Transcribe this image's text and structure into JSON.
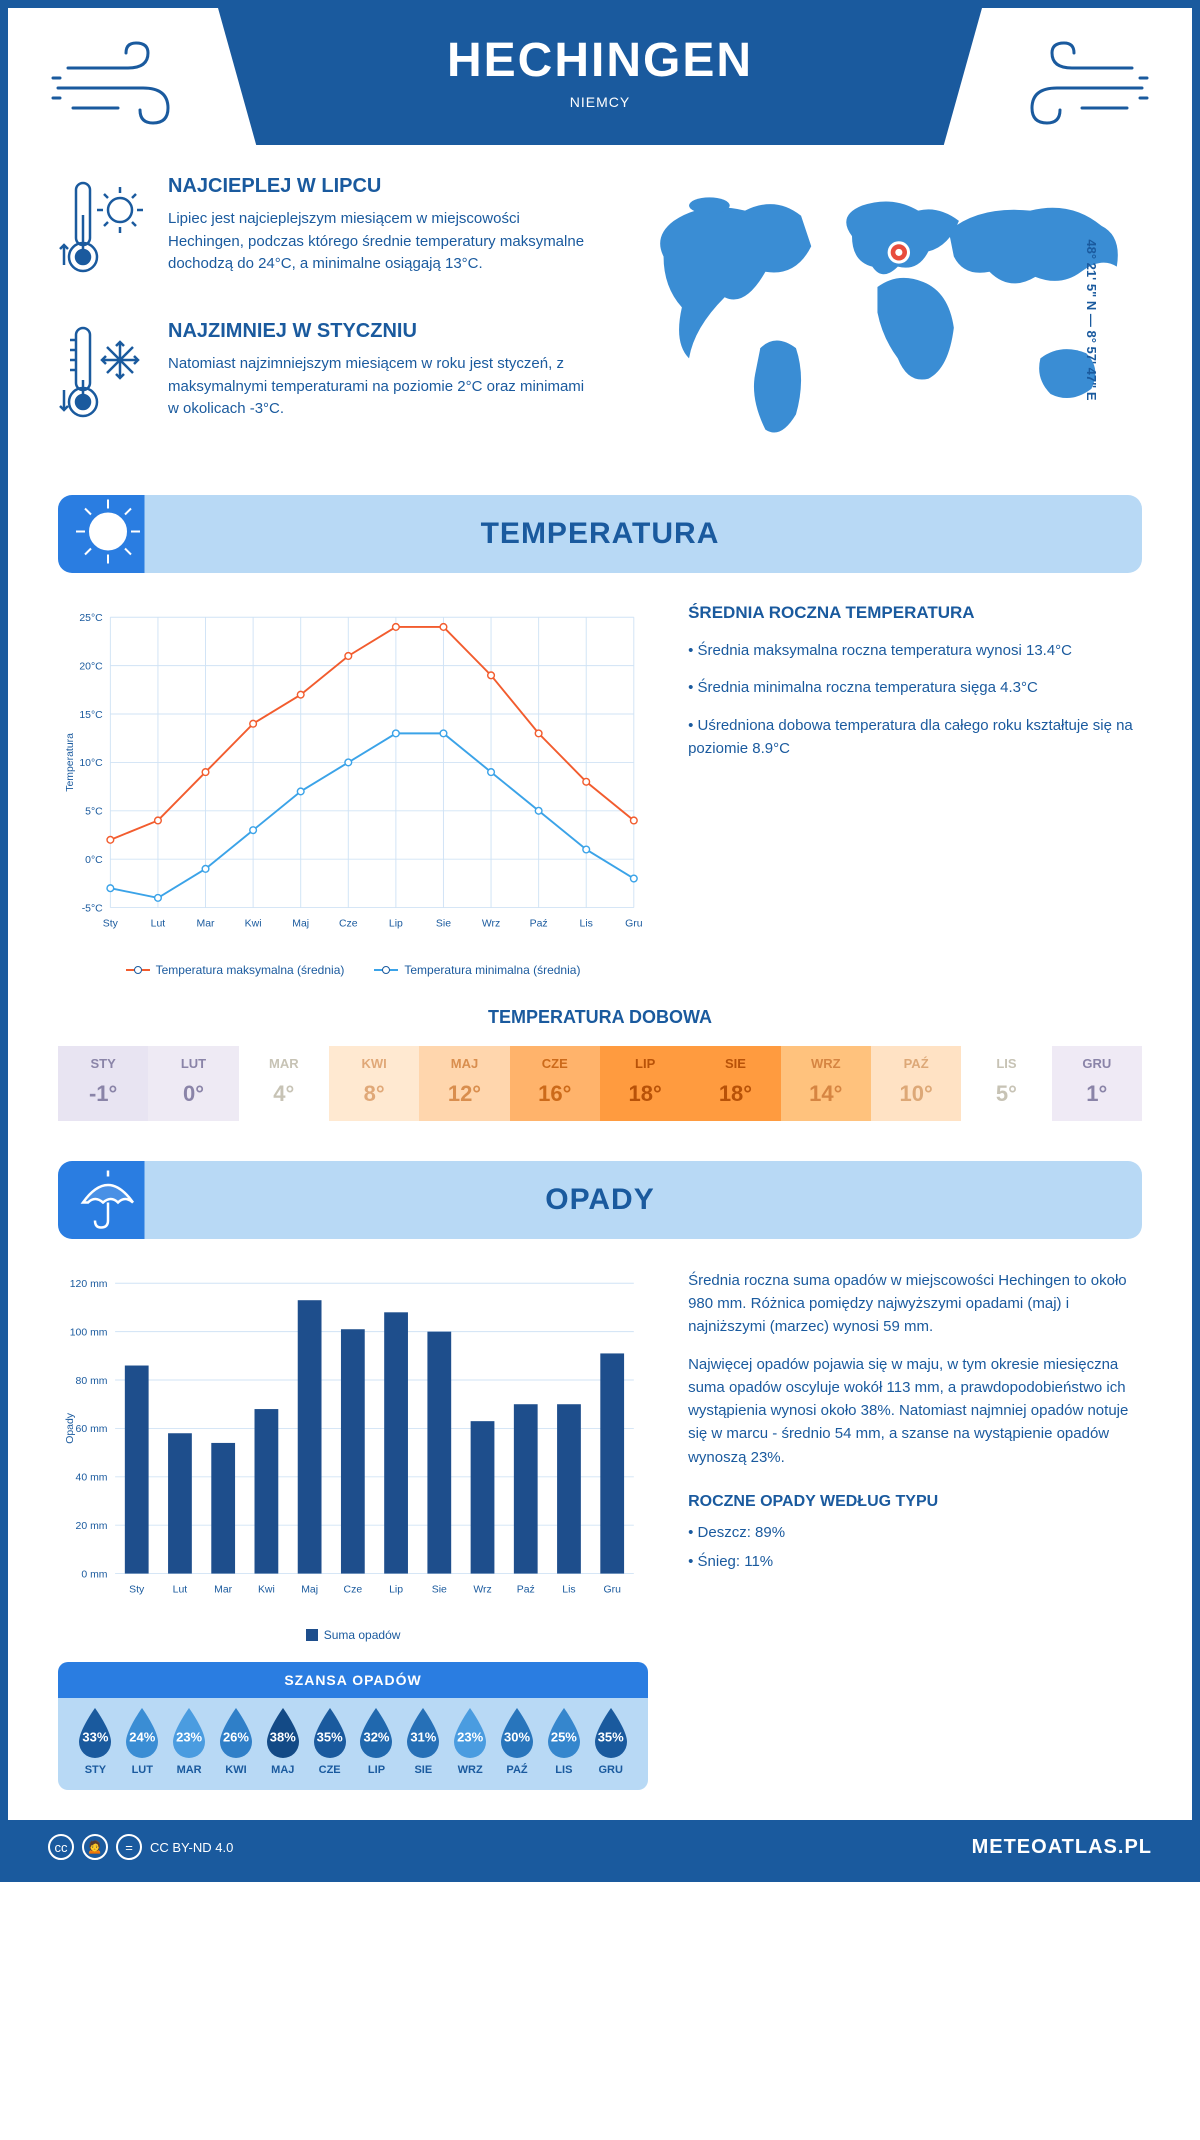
{
  "header": {
    "city": "HECHINGEN",
    "country": "NIEMCY"
  },
  "coords": "48° 21' 5\" N — 8° 57' 47\" E",
  "colors": {
    "primary": "#1a5a9e",
    "accent": "#2a7de1",
    "light": "#b8d9f5",
    "orange": "#f25c2e",
    "blue_line": "#3ba3e8",
    "bar": "#1e4e8c",
    "marker": "#e84c3d"
  },
  "facts": {
    "hot": {
      "title": "NAJCIEPLEJ W LIPCU",
      "text": "Lipiec jest najcieplejszym miesiącem w miejscowości Hechingen, podczas którego średnie temperatury maksymalne dochodzą do 24°C, a minimalne osiągają 13°C."
    },
    "cold": {
      "title": "NAJZIMNIEJ W STYCZNIU",
      "text": "Natomiast najzimniejszym miesiącem w roku jest styczeń, z maksymalnymi temperaturami na poziomie 2°C oraz minimami w okolicach -3°C."
    }
  },
  "temp_section": {
    "title": "TEMPERATURA",
    "chart": {
      "type": "line",
      "months": [
        "Sty",
        "Lut",
        "Mar",
        "Kwi",
        "Maj",
        "Cze",
        "Lip",
        "Sie",
        "Wrz",
        "Paź",
        "Lis",
        "Gru"
      ],
      "y_ticks": [
        -5,
        0,
        5,
        10,
        15,
        20,
        25
      ],
      "y_tick_labels": [
        "-5°C",
        "0°C",
        "5°C",
        "10°C",
        "15°C",
        "20°C",
        "25°C"
      ],
      "ylim": [
        -5,
        25
      ],
      "y_axis_label": "Temperatura",
      "series": {
        "max": {
          "label": "Temperatura maksymalna (średnia)",
          "color": "#f25c2e",
          "values": [
            2,
            4,
            9,
            14,
            17,
            21,
            24,
            24,
            19,
            13,
            8,
            4
          ]
        },
        "min": {
          "label": "Temperatura minimalna (średnia)",
          "color": "#3ba3e8",
          "values": [
            -3,
            -4,
            -1,
            3,
            7,
            10,
            13,
            13,
            9,
            5,
            1,
            -2
          ]
        }
      },
      "line_width": 2,
      "marker_radius": 3.5,
      "background": "#ffffff",
      "grid_color": "#d0e3f5"
    },
    "summary": {
      "title": "ŚREDNIA ROCZNA TEMPERATURA",
      "bullets": [
        "• Średnia maksymalna roczna temperatura wynosi 13.4°C",
        "• Średnia minimalna roczna temperatura sięga 4.3°C",
        "• Uśredniona dobowa temperatura dla całego roku kształtuje się na poziomie 8.9°C"
      ]
    },
    "daily": {
      "title": "TEMPERATURA DOBOWA",
      "months": [
        "STY",
        "LUT",
        "MAR",
        "KWI",
        "MAJ",
        "CZE",
        "LIP",
        "SIE",
        "WRZ",
        "PAŹ",
        "LIS",
        "GRU"
      ],
      "values": [
        "-1°",
        "0°",
        "4°",
        "8°",
        "12°",
        "16°",
        "18°",
        "18°",
        "14°",
        "10°",
        "5°",
        "1°"
      ],
      "bg_colors": [
        "#e8e4f2",
        "#eeeaf4",
        "#ffffff",
        "#ffe9d1",
        "#ffd6ad",
        "#ffb36b",
        "#ff9b3f",
        "#ff9b3f",
        "#ffc27d",
        "#ffe2c4",
        "#ffffff",
        "#efeaf5"
      ],
      "text_colors": [
        "#8a84a8",
        "#8a84a8",
        "#c7c3b5",
        "#e0a878",
        "#d98e4e",
        "#cc6a1a",
        "#b85208",
        "#b85208",
        "#d68542",
        "#dda877",
        "#c7c3b5",
        "#8a84a8"
      ]
    }
  },
  "precip_section": {
    "title": "OPADY",
    "chart": {
      "type": "bar",
      "months": [
        "Sty",
        "Lut",
        "Mar",
        "Kwi",
        "Maj",
        "Cze",
        "Lip",
        "Sie",
        "Wrz",
        "Paź",
        "Lis",
        "Gru"
      ],
      "values": [
        86,
        58,
        54,
        68,
        113,
        101,
        108,
        100,
        63,
        70,
        70,
        91
      ],
      "y_ticks": [
        0,
        20,
        40,
        60,
        80,
        100,
        120
      ],
      "y_tick_labels": [
        "0 mm",
        "20 mm",
        "40 mm",
        "60 mm",
        "80 mm",
        "100 mm",
        "120 mm"
      ],
      "ylim": [
        0,
        120
      ],
      "y_axis_label": "Opady",
      "bar_color": "#1e4e8c",
      "bar_width": 0.55,
      "legend_label": "Suma opadów",
      "grid_color": "#d0e3f5"
    },
    "text1": "Średnia roczna suma opadów w miejscowości Hechingen to około 980 mm. Różnica pomiędzy najwyższymi opadami (maj) i najniższymi (marzec) wynosi 59 mm.",
    "text2": "Najwięcej opadów pojawia się w maju, w tym okresie miesięczna suma opadów oscyluje wokół 113 mm, a prawdopodobieństwo ich wystąpienia wynosi około 38%. Natomiast najmniej opadów notuje się w marcu - średnio 54 mm, a szanse na wystąpienie opadów wynoszą 23%.",
    "chance": {
      "title": "SZANSA OPADÓW",
      "months": [
        "STY",
        "LUT",
        "MAR",
        "KWI",
        "MAJ",
        "CZE",
        "LIP",
        "SIE",
        "WRZ",
        "PAŹ",
        "LIS",
        "GRU"
      ],
      "values": [
        "33%",
        "24%",
        "23%",
        "26%",
        "38%",
        "35%",
        "32%",
        "31%",
        "23%",
        "30%",
        "25%",
        "35%"
      ],
      "drop_colors": [
        "#1a5a9e",
        "#3a8dd4",
        "#4a9ce0",
        "#2f7fc8",
        "#134a86",
        "#1a5a9e",
        "#2068ae",
        "#2670b7",
        "#4a9ce0",
        "#2875bc",
        "#3586cd",
        "#1a5a9e"
      ]
    },
    "types": {
      "title": "ROCZNE OPADY WEDŁUG TYPU",
      "rain": "• Deszcz: 89%",
      "snow": "• Śnieg: 11%"
    }
  },
  "footer": {
    "license": "CC BY-ND 4.0",
    "site": "METEOATLAS.PL"
  }
}
